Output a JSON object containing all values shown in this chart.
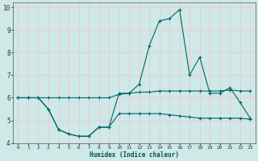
{
  "xlabel": "Humidex (Indice chaleur)",
  "bg_color": "#cfe8e8",
  "grid_color": "#f0c8c8",
  "line_color": "#006666",
  "xlim": [
    -0.5,
    23.5
  ],
  "ylim": [
    4,
    10.2
  ],
  "yticks": [
    4,
    5,
    6,
    7,
    8,
    9,
    10
  ],
  "xticks": [
    0,
    1,
    2,
    3,
    4,
    5,
    6,
    7,
    8,
    9,
    10,
    11,
    12,
    13,
    14,
    15,
    16,
    17,
    18,
    19,
    20,
    21,
    22,
    23
  ],
  "line1_x": [
    0,
    1,
    2,
    3,
    4,
    5,
    6,
    7,
    8,
    9,
    10,
    11,
    12,
    13,
    14,
    15,
    16,
    17,
    18,
    19,
    20,
    21,
    22,
    23
  ],
  "line1_y": [
    6.0,
    6.0,
    6.0,
    6.0,
    6.0,
    6.0,
    6.0,
    6.0,
    6.0,
    6.0,
    6.15,
    6.2,
    6.25,
    6.25,
    6.3,
    6.3,
    6.3,
    6.3,
    6.3,
    6.3,
    6.3,
    6.35,
    6.3,
    6.3
  ],
  "line2_x": [
    0,
    1,
    2,
    3,
    4,
    5,
    6,
    7,
    8,
    9,
    10,
    11,
    12,
    13,
    14,
    15,
    16,
    17,
    18,
    19,
    20,
    21,
    22,
    23
  ],
  "line2_y": [
    6.0,
    6.0,
    6.0,
    5.5,
    4.6,
    4.4,
    4.3,
    4.3,
    4.7,
    4.7,
    5.3,
    5.3,
    5.3,
    5.3,
    5.3,
    5.25,
    5.2,
    5.15,
    5.1,
    5.1,
    5.1,
    5.1,
    5.1,
    5.05
  ],
  "line3_x": [
    0,
    1,
    2,
    3,
    4,
    5,
    6,
    7,
    8,
    9,
    10,
    11,
    12,
    13,
    14,
    15,
    16,
    17,
    18,
    19,
    20,
    21,
    22,
    23
  ],
  "line3_y": [
    6.0,
    6.0,
    6.0,
    5.5,
    4.6,
    4.4,
    4.3,
    4.3,
    4.7,
    4.7,
    6.2,
    6.2,
    6.6,
    8.3,
    9.4,
    9.5,
    9.9,
    7.0,
    7.8,
    6.2,
    6.2,
    6.45,
    5.8,
    5.1
  ],
  "marker": "+",
  "markersize": 2.5,
  "linewidth": 0.8
}
